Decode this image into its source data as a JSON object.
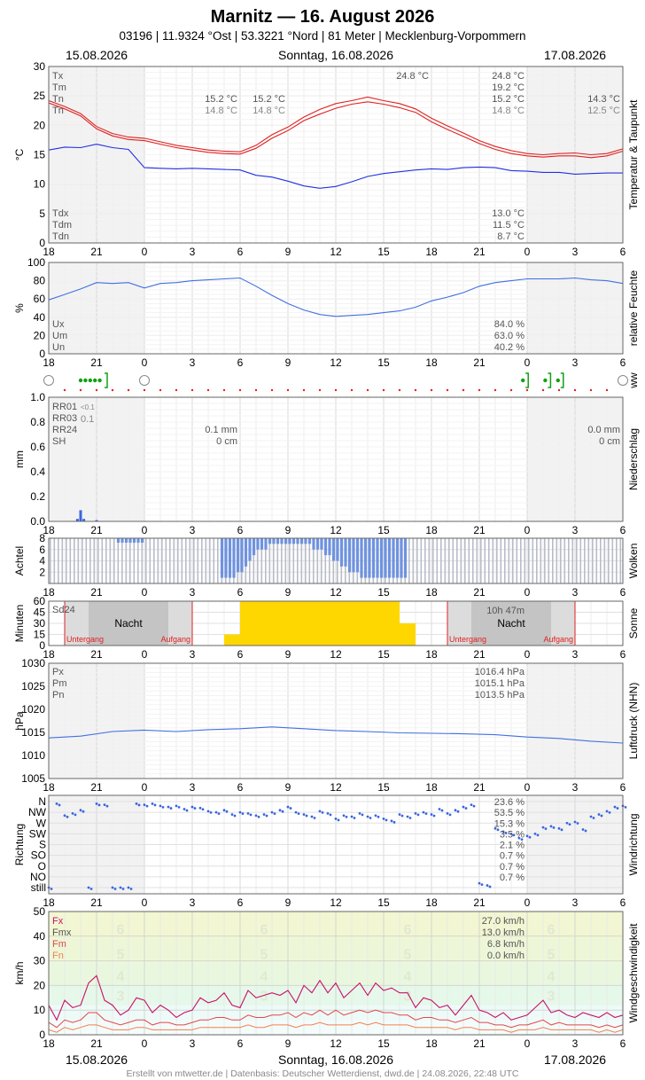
{
  "header": {
    "title": "Marnitz  —  16. August 2026",
    "subtitle": "03196  |  11.9324 °Ost  |  53.3221 °Nord  |  81 Meter  |  Mecklenburg-Vorpommern",
    "date_left": "15.08.2026",
    "date_center": "Sonntag, 16.08.2026",
    "date_right": "17.08.2026"
  },
  "footer": "Erstellt von mtwetter.de | Datenbasis: Deutscher Wetterdienst, dwd.de | 24.08.2026, 22:48 UTC",
  "x_ticks": [
    "18",
    "21",
    "0",
    "3",
    "6",
    "9",
    "12",
    "15",
    "18",
    "21",
    "0",
    "3",
    "6"
  ],
  "chart_data": [
    {
      "id": "temp",
      "type": "line",
      "ylabel": "°C",
      "side_label": "Temperatur & Taupunkt",
      "ylim": [
        0,
        30
      ],
      "yticks": [
        0,
        5,
        10,
        15,
        20,
        25,
        30
      ],
      "x_hours": [
        -6,
        -5,
        -4,
        -3,
        -2,
        -1,
        0,
        1,
        2,
        3,
        4,
        5,
        6,
        7,
        8,
        9,
        10,
        11,
        12,
        13,
        14,
        15,
        16,
        17,
        18,
        19,
        20,
        21,
        22,
        23,
        24,
        25,
        26,
        27,
        28,
        29,
        30
      ],
      "series": [
        {
          "name": "Tx",
          "values": [
            24.2,
            23.2,
            22.0,
            19.8,
            18.6,
            18.0,
            17.8,
            17.2,
            16.6,
            16.2,
            15.8,
            15.6,
            15.5,
            16.6,
            18.4,
            19.7,
            21.4,
            22.7,
            23.7,
            24.2,
            24.8,
            24.2,
            23.7,
            22.8,
            21.2,
            19.9,
            18.7,
            17.4,
            16.4,
            15.7,
            15.2,
            15.0,
            15.2,
            15.3,
            15.0,
            15.2,
            16.0
          ]
        },
        {
          "name": "Tn",
          "values": [
            23.8,
            22.8,
            21.6,
            19.4,
            18.2,
            17.6,
            17.4,
            16.8,
            16.2,
            15.8,
            15.4,
            15.2,
            15.1,
            16.1,
            17.8,
            19.1,
            20.8,
            21.9,
            22.9,
            23.6,
            24.0,
            23.6,
            23.0,
            22.2,
            20.6,
            19.3,
            18.1,
            16.9,
            15.9,
            15.2,
            14.8,
            14.6,
            14.8,
            14.8,
            14.5,
            14.8,
            15.6
          ]
        },
        {
          "name": "Td",
          "values": [
            15.8,
            16.3,
            16.2,
            16.8,
            16.2,
            15.9,
            12.8,
            12.7,
            12.6,
            12.7,
            12.6,
            12.5,
            12.4,
            11.5,
            11.2,
            10.5,
            9.7,
            9.3,
            9.6,
            10.4,
            11.3,
            11.8,
            12.1,
            12.4,
            12.6,
            12.5,
            12.8,
            12.9,
            12.8,
            12.3,
            12.2,
            12.0,
            12.0,
            11.7,
            11.8,
            11.9,
            11.9
          ]
        }
      ],
      "labels": {
        "Tx": "Tx",
        "Tm": "Tm",
        "Tn": "Tn",
        "Tn2": "Tn",
        "Tx_val": "24.8 °C",
        "right_Tx": "24.8 °C",
        "right_Tm": "19.2 °C",
        "right_Tn": "15.2 °C",
        "right_Tn2": "14.8 °C",
        "a1": "15.2 °C",
        "a2": "14.8 °C",
        "b1": "15.2 °C",
        "b2": "14.8 °C",
        "c1": "14.3 °C",
        "c2": "12.5 °C",
        "Tdx": "Tdx",
        "Tdm": "Tdm",
        "Tdn": "Tdn",
        "right_Tdx": "13.0 °C",
        "right_Tdm": "11.5 °C",
        "right_Tdn": "8.7 °C"
      }
    },
    {
      "id": "humidity",
      "type": "line",
      "ylabel": "%",
      "side_label": "relative Feuchte",
      "ylim": [
        0,
        100
      ],
      "yticks": [
        0,
        20,
        40,
        60,
        80,
        100
      ],
      "x_hours": [
        -6,
        -5,
        -4,
        -3,
        -2,
        -1,
        0,
        1,
        2,
        3,
        4,
        5,
        6,
        7,
        8,
        9,
        10,
        11,
        12,
        13,
        14,
        15,
        16,
        17,
        18,
        19,
        20,
        21,
        22,
        23,
        24,
        25,
        26,
        27,
        28,
        29,
        30
      ],
      "series": [
        {
          "name": "U",
          "values": [
            59,
            65,
            71,
            78,
            77,
            78,
            72,
            77,
            78,
            80,
            81,
            82,
            83,
            74,
            64,
            55,
            48,
            43,
            41,
            42,
            43,
            45,
            47,
            51,
            58,
            62,
            67,
            74,
            78,
            80,
            82,
            82,
            82,
            83,
            81,
            80,
            77
          ]
        }
      ],
      "labels": {
        "Ux": "Ux",
        "Um": "Um",
        "Un": "Un",
        "right_Ux": "84.0 %",
        "right_Um": "63.0 %",
        "right_Un": "40.2 %"
      }
    },
    {
      "id": "precip",
      "type": "bar",
      "ylabel": "mm",
      "side_label": "Niederschlag",
      "ylim": [
        0,
        1.0
      ],
      "yticks": [
        "0.0",
        "0.2",
        "0.4",
        "0.6",
        "0.8",
        "1.0"
      ],
      "bars": [
        {
          "x": -4.2,
          "value": 0.02
        },
        {
          "x": -4.0,
          "value": 0.09
        },
        {
          "x": -3.8,
          "value": 0.02
        },
        {
          "x": -3.0,
          "value": 0.01
        }
      ],
      "labels": {
        "RR01": "RR01",
        "RR01_small": "<0.1",
        "RR03": "RR03",
        "RR03_val": "0.1",
        "RR24": "RR24",
        "SH": "SH",
        "mid_RR24": "0.1 mm",
        "mid_SH": "0 cm",
        "right_RR24": "0.0 mm",
        "right_SH": "0 cm"
      }
    },
    {
      "id": "clouds",
      "type": "bar",
      "ylabel": "Achtel",
      "side_label": "Wolken",
      "ylim": [
        0,
        8
      ],
      "yticks": [
        2,
        4,
        6,
        8
      ],
      "values_by_hour": [
        8,
        8,
        7,
        8,
        8,
        8,
        8,
        8,
        8,
        8,
        8,
        7,
        6,
        2,
        1,
        1,
        1,
        2,
        4,
        6,
        7,
        7,
        7,
        8,
        8,
        8,
        8,
        8,
        8,
        8,
        8,
        8,
        7,
        7,
        7,
        8,
        8
      ]
    },
    {
      "id": "sun",
      "type": "bar",
      "ylabel": "Minuten",
      "side_label": "Sonne",
      "ylim": [
        0,
        60
      ],
      "yticks": [
        0,
        15,
        30,
        45,
        60
      ],
      "sun_minutes_by_hour": [
        [
          5,
          15
        ],
        [
          6,
          60
        ],
        [
          7,
          60
        ],
        [
          8,
          60
        ],
        [
          9,
          60
        ],
        [
          10,
          60
        ],
        [
          11,
          60
        ],
        [
          12,
          60
        ],
        [
          13,
          60
        ],
        [
          14,
          60
        ],
        [
          15,
          60
        ],
        [
          16,
          30
        ]
      ],
      "labels": {
        "Sd24": "Sd24",
        "night": "Nacht",
        "night2": "Nacht",
        "sunset": "Untergang",
        "sunrise": "Aufgang",
        "sunset2": "Untergang",
        "sunrise2": "Aufgang",
        "right_Sd": "10h 47m"
      }
    },
    {
      "id": "pressure",
      "type": "line",
      "ylabel": "hPa",
      "side_label": "Luftdruck (NHN)",
      "ylim": [
        1005,
        1030
      ],
      "yticks": [
        1005,
        1010,
        1015,
        1020,
        1025,
        1030
      ],
      "x_hours": [
        -6,
        -4,
        -2,
        0,
        2,
        4,
        6,
        8,
        10,
        12,
        14,
        16,
        18,
        20,
        22,
        24,
        26,
        28,
        30
      ],
      "series": [
        {
          "name": "P",
          "values": [
            1013.8,
            1014.2,
            1015.2,
            1015.5,
            1015.2,
            1015.6,
            1015.8,
            1016.2,
            1015.8,
            1015.4,
            1015.2,
            1014.9,
            1014.8,
            1014.7,
            1014.5,
            1014.0,
            1013.7,
            1013.1,
            1012.7
          ]
        }
      ],
      "labels": {
        "Px": "Px",
        "Pm": "Pm",
        "Pn": "Pn",
        "right_Px": "1016.4 hPa",
        "right_Pm": "1015.1 hPa",
        "right_Pn": "1013.5 hPa"
      }
    },
    {
      "id": "winddir",
      "type": "scatter",
      "ylabel": "Richtung",
      "side_label": "Windrichtung",
      "categories": [
        "N",
        "NW",
        "W",
        "SW",
        "S",
        "SO",
        "O",
        "NO",
        "still"
      ],
      "x_hours": [
        -6,
        -5.5,
        -5,
        -4.5,
        -4,
        -3.5,
        -3,
        -2.5,
        -2,
        -1.5,
        -1,
        -0.5,
        0,
        0.5,
        1,
        1.5,
        2,
        2.5,
        3,
        3.5,
        4,
        4.5,
        5,
        5.5,
        6,
        6.5,
        7,
        7.5,
        8,
        8.5,
        9,
        9.5,
        10,
        10.5,
        11,
        11.5,
        12,
        12.5,
        13,
        13.5,
        14,
        14.5,
        15,
        15.5,
        16,
        16.5,
        17,
        17.5,
        18,
        18.5,
        19,
        19.5,
        20,
        20.5,
        21,
        21.5,
        22,
        22.5,
        23,
        23.5,
        24,
        24.5,
        25,
        25.5,
        26,
        26.5,
        27,
        27.5,
        28,
        28.5,
        29,
        29.5,
        30
      ],
      "values": [
        8,
        0.2,
        1.3,
        1.1,
        0.8,
        8,
        0.2,
        0.3,
        8,
        8,
        8,
        0.2,
        0.3,
        0.2,
        0.4,
        0.5,
        0.4,
        0.7,
        0.5,
        0.6,
        0.9,
        1,
        0.8,
        1.2,
        1,
        1.1,
        1.3,
        1.2,
        1,
        0.8,
        0.5,
        1,
        1.2,
        1.4,
        0.9,
        1.1,
        1.6,
        1.3,
        1.4,
        1.1,
        1.4,
        1.3,
        1.6,
        1.8,
        1.2,
        1.4,
        1.1,
        1,
        1.2,
        0.7,
        1.1,
        0.8,
        0.5,
        0.3,
        7.6,
        7.8,
        2.5,
        2.8,
        3,
        3.4,
        3.2,
        3,
        2.4,
        2.3,
        2.5,
        2,
        1.9,
        2.6,
        1.4,
        1.2,
        0.9,
        0.5,
        0.4
      ],
      "labels": {
        "p1": "23.6 %",
        "p2": "53.5 %",
        "p3": "15.3 %",
        "p4": "3.5 %",
        "p5": "2.1 %",
        "p6": "0.7 %",
        "p7": "0.7 %",
        "p8": "0.7 %"
      }
    },
    {
      "id": "windspeed",
      "type": "line",
      "ylabel": "km/h",
      "side_label": "Windgeschwindigkeit",
      "ylim": [
        0,
        50
      ],
      "yticks": [
        0,
        10,
        20,
        30,
        40,
        50
      ],
      "bft_digits": [
        "6",
        "5",
        "4",
        "3"
      ],
      "x_hours": [
        -6,
        -5.5,
        -5,
        -4.5,
        -4,
        -3.5,
        -3,
        -2.5,
        -2,
        -1.5,
        -1,
        -0.5,
        0,
        0.5,
        1,
        1.5,
        2,
        2.5,
        3,
        3.5,
        4,
        4.5,
        5,
        5.5,
        6,
        6.5,
        7,
        7.5,
        8,
        8.5,
        9,
        9.5,
        10,
        10.5,
        11,
        11.5,
        12,
        12.5,
        13,
        13.5,
        14,
        14.5,
        15,
        15.5,
        16,
        16.5,
        17,
        17.5,
        18,
        18.5,
        19,
        19.5,
        20,
        20.5,
        21,
        21.5,
        22,
        22.5,
        23,
        23.5,
        24,
        24.5,
        25,
        25.5,
        26,
        26.5,
        27,
        27.5,
        28,
        28.5,
        29,
        29.5,
        30
      ],
      "series": [
        {
          "name": "Fx",
          "values": [
            12,
            6,
            14,
            11,
            12,
            21,
            24,
            14,
            12,
            8,
            10,
            15,
            14,
            9,
            12,
            10,
            7,
            9,
            10,
            15,
            13,
            14,
            17,
            12,
            11,
            18,
            15,
            16,
            17,
            16,
            18,
            13,
            20,
            17,
            22,
            17,
            21,
            15,
            18,
            21,
            16,
            21,
            18,
            19,
            17,
            17,
            11,
            15,
            14,
            11,
            12,
            8,
            12,
            16,
            10,
            9,
            7,
            9,
            6,
            7,
            8,
            11,
            14,
            9,
            10,
            8,
            7,
            9,
            8,
            7,
            9,
            7,
            8
          ]
        },
        {
          "name": "Fmx",
          "values": [
            5,
            3,
            6,
            5,
            6,
            9,
            9,
            6,
            5,
            4,
            5,
            6,
            6,
            4,
            5,
            5,
            4,
            4,
            5,
            6,
            6,
            7,
            7,
            6,
            6,
            8,
            7,
            7,
            8,
            8,
            9,
            7,
            9,
            8,
            10,
            8,
            10,
            8,
            9,
            10,
            9,
            10,
            9,
            9,
            8,
            8,
            6,
            7,
            7,
            6,
            6,
            5,
            6,
            7,
            5,
            5,
            4,
            4,
            3,
            4,
            4,
            5,
            6,
            4,
            5,
            4,
            4,
            4,
            4,
            3,
            4,
            3,
            4
          ]
        },
        {
          "name": "Fm",
          "values": [
            2,
            1,
            3,
            2,
            3,
            4,
            4,
            3,
            2,
            2,
            2,
            3,
            3,
            2,
            2,
            2,
            2,
            2,
            2,
            3,
            3,
            3,
            3,
            3,
            3,
            4,
            3,
            3,
            4,
            4,
            4,
            3,
            4,
            4,
            5,
            4,
            4,
            4,
            4,
            5,
            4,
            5,
            4,
            4,
            4,
            4,
            3,
            3,
            3,
            3,
            3,
            2,
            3,
            3,
            2,
            2,
            2,
            2,
            1,
            2,
            2,
            2,
            3,
            2,
            2,
            2,
            2,
            2,
            2,
            1,
            2,
            1,
            2
          ]
        }
      ],
      "labels": {
        "Fx": "Fx",
        "Fmx": "Fmx",
        "Fm": "Fm",
        "Fn": "Fn",
        "right_Fx": "27.0 km/h",
        "right_Fmx": "13.0 km/h",
        "right_Fm": "6.8 km/h",
        "right_Fn": "0.0 km/h"
      }
    }
  ],
  "ww": {
    "side_label": "ww",
    "rain_dots": [
      -4.0,
      -3.7,
      -3.4,
      -3.1,
      -2.8
    ],
    "rain_bracket": -2.5,
    "drizzle_symbols": [
      23.9,
      25.3,
      26.1
    ]
  }
}
